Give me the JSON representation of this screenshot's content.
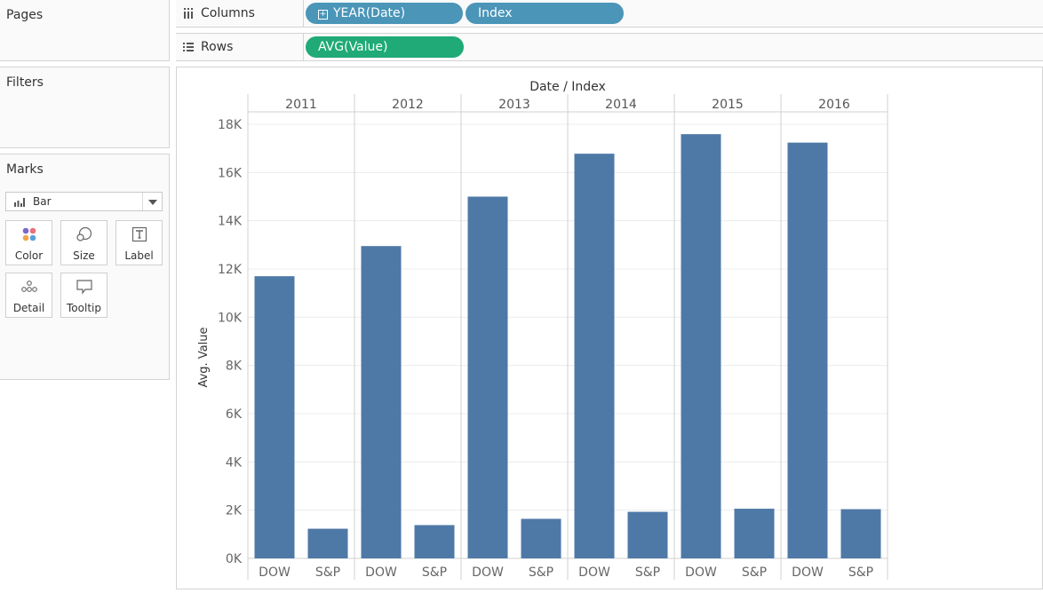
{
  "left_panel": {
    "pages_title": "Pages",
    "filters_title": "Filters",
    "marks": {
      "title": "Marks",
      "mark_type": "Bar",
      "buttons": [
        {
          "label": "Color",
          "icon": "color-icon"
        },
        {
          "label": "Size",
          "icon": "size-icon"
        },
        {
          "label": "Label",
          "icon": "label-icon"
        },
        {
          "label": "Detail",
          "icon": "detail-icon"
        },
        {
          "label": "Tooltip",
          "icon": "tooltip-icon"
        }
      ]
    }
  },
  "shelves": {
    "columns": {
      "label": "Columns",
      "pills": [
        "YEAR(Date)",
        "Index"
      ]
    },
    "rows": {
      "label": "Rows",
      "pills": [
        "AVG(Value)"
      ]
    }
  },
  "colors": {
    "bar": "#4e79a7",
    "pill_dimension": "#4a95b8",
    "pill_measure": "#1faa77"
  },
  "chart_data": {
    "type": "bar",
    "title": "Date / Index",
    "ylabel": "Avg. Value",
    "ylim": [
      0,
      18000
    ],
    "y_ticks": [
      0,
      2000,
      4000,
      6000,
      8000,
      10000,
      12000,
      14000,
      16000,
      18000
    ],
    "y_tick_labels": [
      "0K",
      "2K",
      "4K",
      "6K",
      "8K",
      "10K",
      "12K",
      "14K",
      "16K",
      "18K"
    ],
    "years": [
      "2011",
      "2012",
      "2013",
      "2014",
      "2015",
      "2016"
    ],
    "index_categories": [
      "DOW",
      "S&P"
    ],
    "series": [
      {
        "name": "DOW",
        "values": [
          11700,
          12950,
          15000,
          16780,
          17590,
          17240
        ]
      },
      {
        "name": "S&P",
        "values": [
          1230,
          1380,
          1640,
          1930,
          2060,
          2040
        ]
      }
    ],
    "grid": true
  }
}
